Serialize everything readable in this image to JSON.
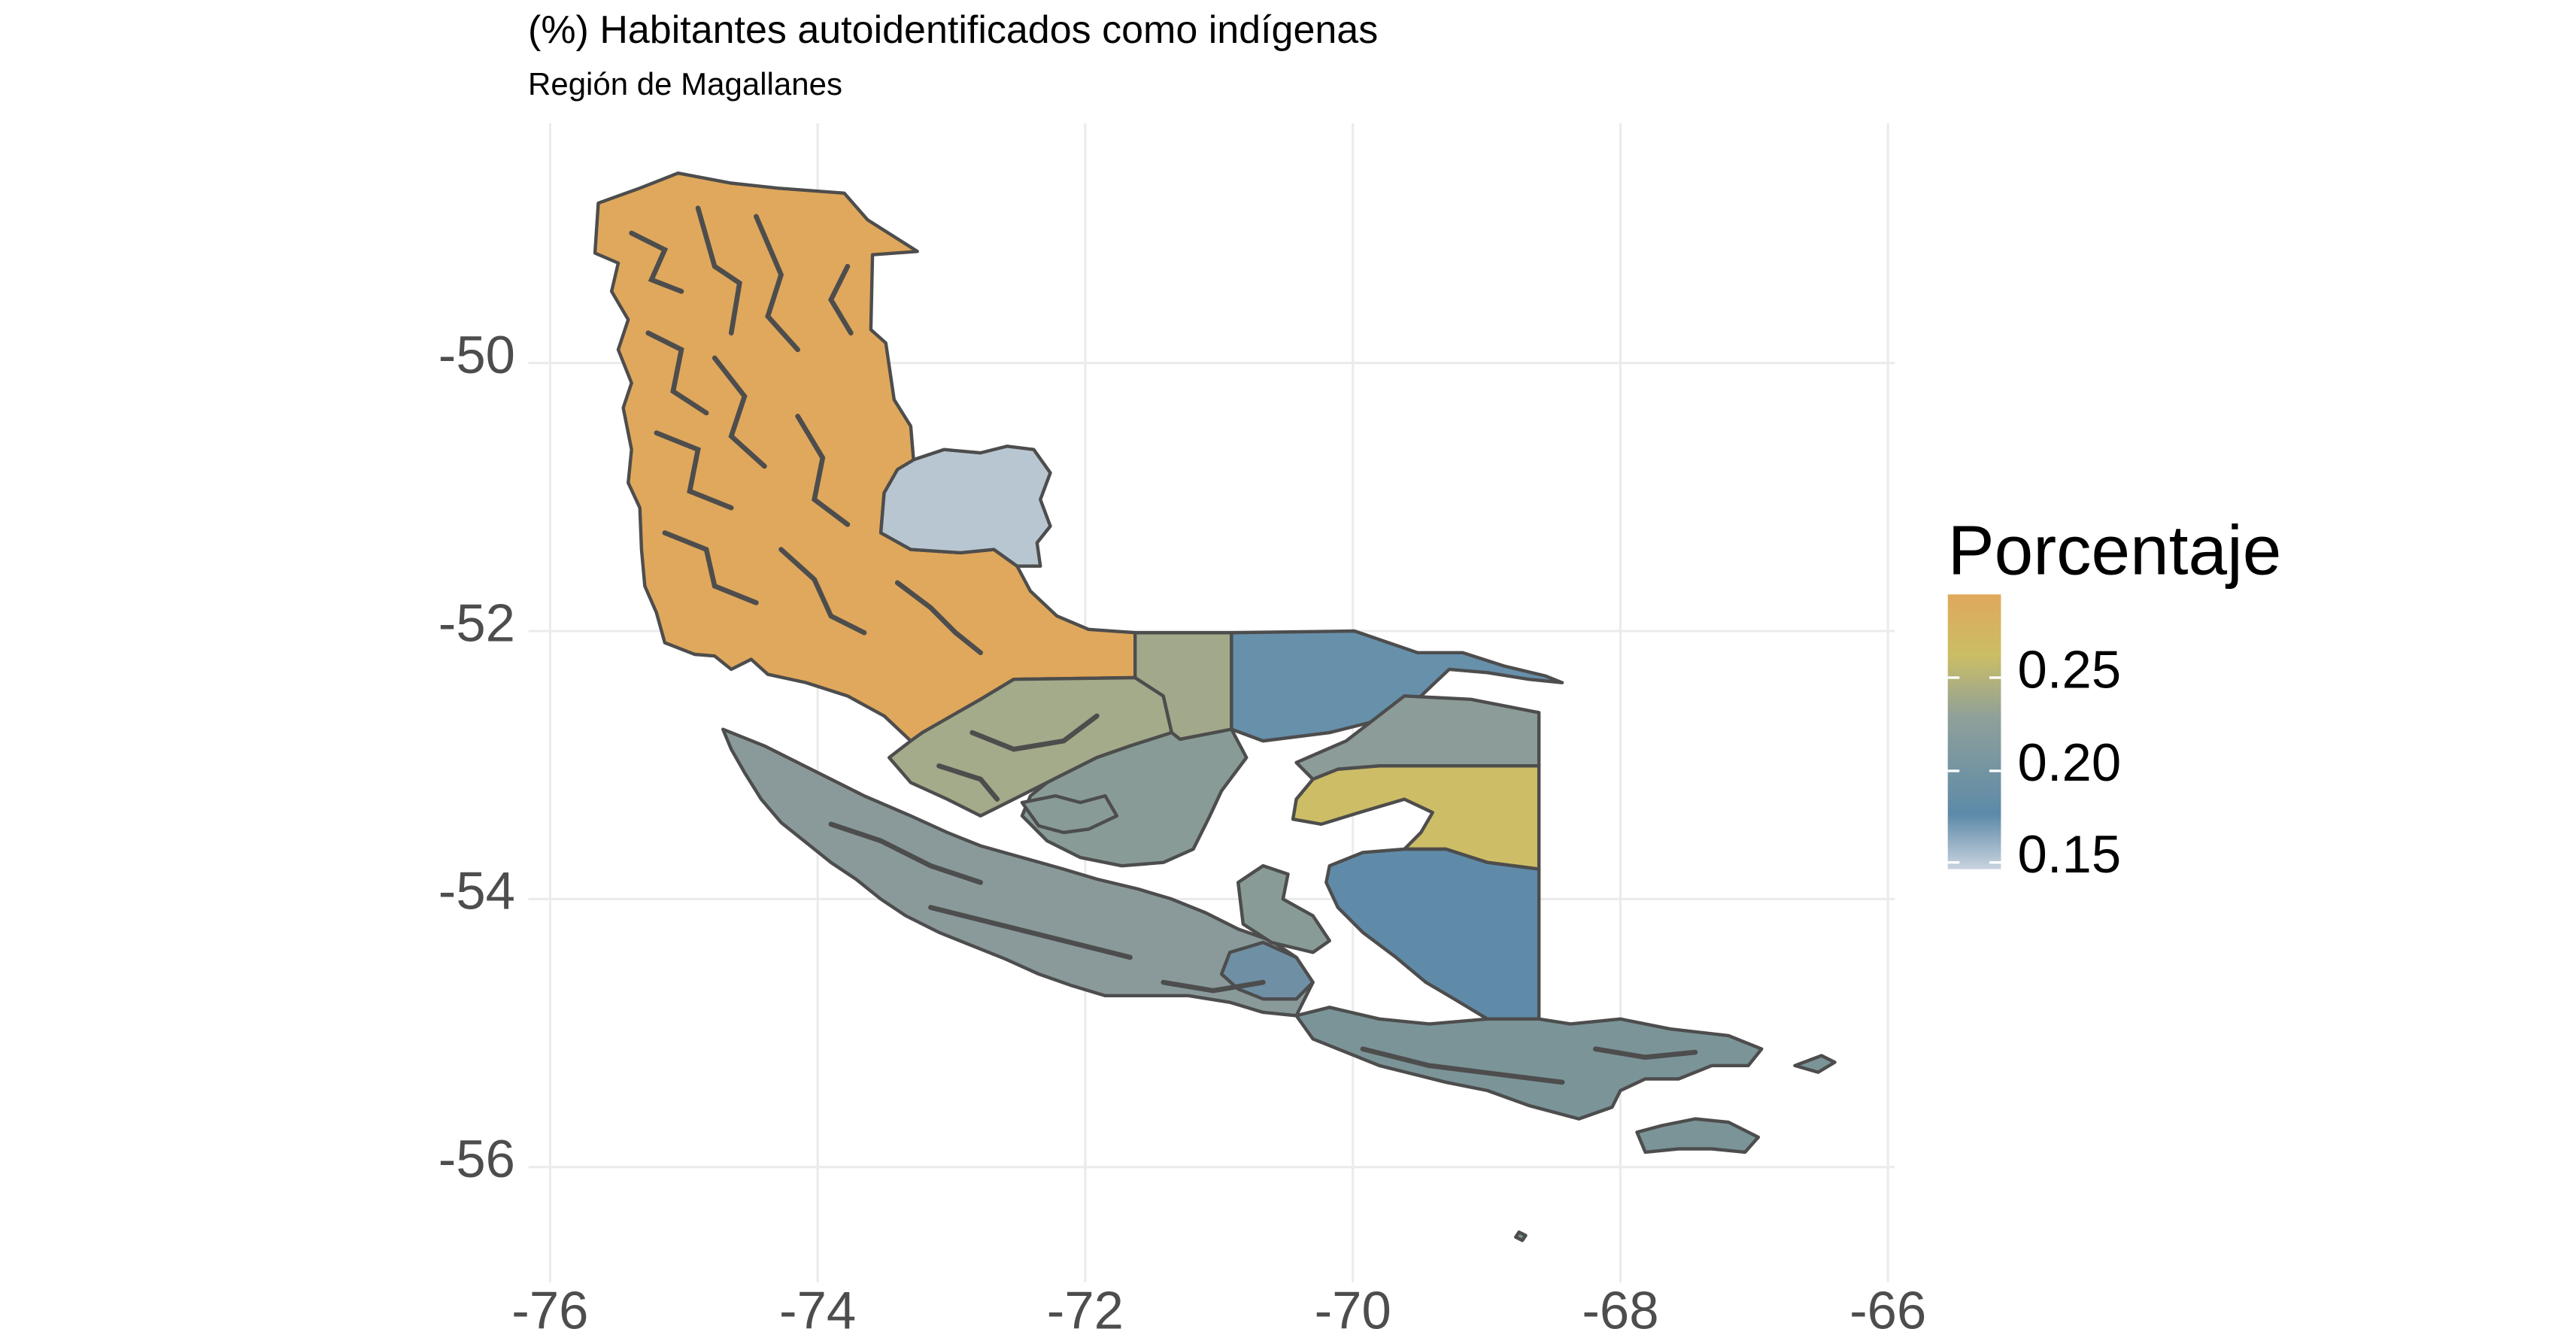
{
  "title": "(%) Habitantes autoidentificados como indígenas",
  "subtitle": "Región de Magallanes",
  "axes": {
    "x": {
      "ticks": [
        "-76",
        "-74",
        "-72",
        "-70",
        "-68",
        "-66"
      ],
      "range": [
        -76,
        -66
      ]
    },
    "y": {
      "ticks": [
        "-50",
        "-52",
        "-54",
        "-56"
      ],
      "range": [
        -56.7,
        -48.2
      ]
    },
    "grid": true
  },
  "legend": {
    "title": "Porcentaje",
    "labels": [
      "0.25",
      "0.20",
      "0.15"
    ],
    "position": "right",
    "colors": {
      "low": "#c9d3de",
      "mid_low": "#5d8aa8",
      "mid": "#8fa09a",
      "mid_high": "#cbbe65",
      "high": "#e0a85c"
    }
  },
  "chart_data": {
    "type": "choropleth",
    "title": "(%) Habitantes autoidentificados como indígenas",
    "subtitle": "Región de Magallanes",
    "fill_legend": "Porcentaje",
    "color_scale": {
      "min": 0.15,
      "max": 0.29,
      "breaks": [
        0.15,
        0.2,
        0.25
      ]
    },
    "regions": [
      {
        "fill_value": 0.29,
        "color": "#e0a85c"
      },
      {
        "fill_value": 0.15,
        "color": "#b8c6d1"
      },
      {
        "fill_value": 0.235,
        "color": "#a4ab8a"
      },
      {
        "fill_value": 0.23,
        "color": "#a2a98a"
      },
      {
        "fill_value": 0.18,
        "color": "#6790ab"
      },
      {
        "fill_value": 0.21,
        "color": "#8c9c98"
      },
      {
        "fill_value": 0.27,
        "color": "#cdbd66"
      },
      {
        "fill_value": 0.21,
        "color": "#889b97"
      },
      {
        "fill_value": 0.18,
        "color": "#5f8ba8"
      },
      {
        "fill_value": 0.2,
        "color": "#7b9498"
      },
      {
        "fill_value": 0.19,
        "color": "#6f8fa4"
      }
    ]
  }
}
